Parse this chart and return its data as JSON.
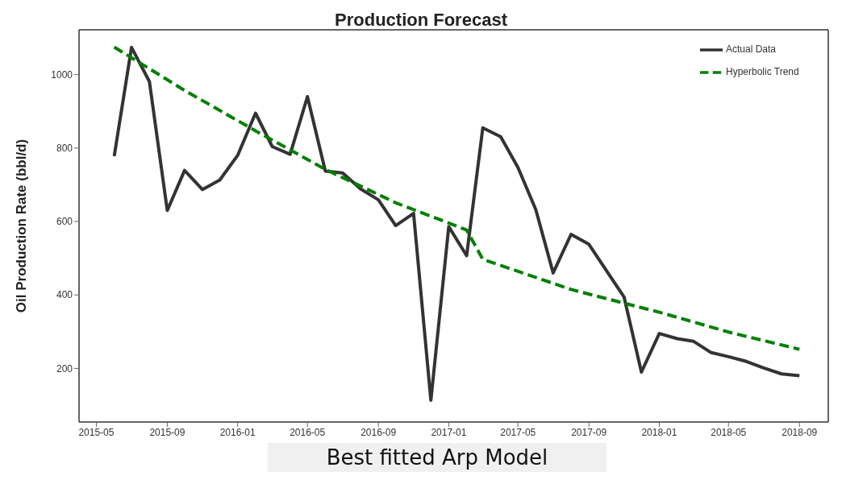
{
  "chart_data": {
    "type": "line",
    "title": "Production Forecast",
    "ylabel": "Oil Production Rate (bbl/d)",
    "xlim": [
      "2015-04-01",
      "2018-10-21"
    ],
    "xticks": [
      "2015-05",
      "2015-09",
      "2016-01",
      "2016-05",
      "2016-09",
      "2017-01",
      "2017-05",
      "2017-09",
      "2018-01",
      "2018-05",
      "2018-09"
    ],
    "ylim": [
      54,
      1122
    ],
    "yticks": [
      200,
      400,
      600,
      800,
      1000
    ],
    "legend": "top right",
    "annotations": [
      "Best fitted Arp Model"
    ],
    "series": [
      {
        "name": "Actual Data",
        "color": "#333333",
        "line_style": "solid",
        "x": [
          "2015-06",
          "2015-07",
          "2015-08",
          "2015-09",
          "2015-10",
          "2015-11",
          "2015-12",
          "2016-01",
          "2016-02",
          "2016-03",
          "2016-04",
          "2016-05",
          "2016-06",
          "2016-07",
          "2016-08",
          "2016-09",
          "2016-10",
          "2016-11",
          "2016-12",
          "2017-01",
          "2017-02",
          "2017-03",
          "2017-04",
          "2017-05",
          "2017-06",
          "2017-07",
          "2017-08",
          "2017-09",
          "2017-10",
          "2017-11",
          "2017-12",
          "2018-01",
          "2018-02",
          "2018-03",
          "2018-04",
          "2018-05",
          "2018-06",
          "2018-07",
          "2018-08",
          "2018-09"
        ],
        "values": [
          778,
          1074,
          981,
          630,
          739,
          687,
          713,
          780,
          895,
          804,
          783,
          940,
          737,
          732,
          689,
          659,
          589,
          622,
          113,
          586,
          507,
          855,
          831,
          747,
          632,
          460,
          565,
          538,
          467,
          394,
          190,
          295,
          281,
          274,
          243,
          232,
          219,
          201,
          185,
          180
        ]
      },
      {
        "name": "Hyperbolic Trend",
        "color": "#008000",
        "line_style": "dashed",
        "x": [
          "2015-06",
          "2015-10",
          "2016-02",
          "2016-06",
          "2016-10",
          "2017-02",
          "2017-03",
          "2017-08",
          "2018-01",
          "2018-05",
          "2018-09"
        ],
        "values": [
          1075,
          957,
          847,
          742,
          651,
          577,
          497,
          415,
          353,
          299,
          252
        ]
      }
    ]
  }
}
